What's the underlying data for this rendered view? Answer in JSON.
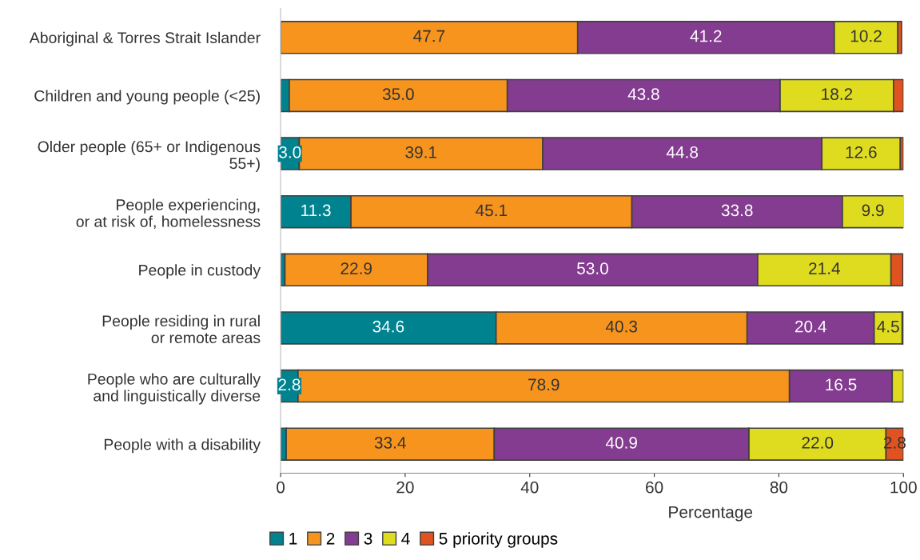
{
  "chart_data": {
    "type": "bar",
    "orientation": "horizontal",
    "stacked": true,
    "xlabel": "Percentage",
    "categories": [
      "Aboriginal & Torres Strait Islander",
      "Children and young people (<25)",
      "Older people (65+ or Indigenous\n55+)",
      "People experiencing,\nor at risk of, homelessness",
      "People in custody",
      "People residing in rural\nor remote areas",
      "People who are culturally\nand linguistically diverse",
      "People with a disability"
    ],
    "series": [
      {
        "name": "1",
        "color": "#00838f",
        "values": [
          null,
          1.4,
          3.0,
          11.3,
          0.7,
          34.6,
          2.8,
          0.9
        ],
        "value_labels": [
          null,
          null,
          "3.0",
          "11.3",
          null,
          "34.6",
          "2.8",
          null
        ]
      },
      {
        "name": "2",
        "color": "#f7941d",
        "values": [
          47.7,
          35.0,
          39.1,
          45.1,
          22.9,
          40.3,
          78.9,
          33.4
        ],
        "value_labels": [
          "47.7",
          "35.0",
          "39.1",
          "45.1",
          "22.9",
          "40.3",
          "78.9",
          "33.4"
        ]
      },
      {
        "name": "3",
        "color": "#833c8f",
        "values": [
          41.2,
          43.8,
          44.8,
          33.8,
          53.0,
          20.4,
          16.5,
          40.9
        ],
        "value_labels": [
          "41.2",
          "43.8",
          "44.8",
          "33.8",
          "53.0",
          "20.4",
          "16.5",
          "40.9"
        ]
      },
      {
        "name": "4",
        "color": "#dfdc1f",
        "values": [
          10.2,
          18.2,
          12.6,
          9.9,
          21.4,
          4.5,
          1.8,
          22.0
        ],
        "value_labels": [
          "10.2",
          "18.2",
          "12.6",
          "9.9",
          "21.4",
          "4.5",
          null,
          "22.0"
        ]
      },
      {
        "name": "5 priority groups",
        "color": "#e0521f",
        "values": [
          0.6,
          1.6,
          0.5,
          0,
          1.9,
          0.2,
          0,
          2.8
        ],
        "value_labels": [
          null,
          null,
          null,
          null,
          null,
          null,
          null,
          "2.8"
        ]
      }
    ],
    "xlim": [
      0,
      100
    ],
    "xticks": [
      0,
      20,
      40,
      60,
      80,
      100
    ],
    "grid": false,
    "legend": "bottom"
  }
}
